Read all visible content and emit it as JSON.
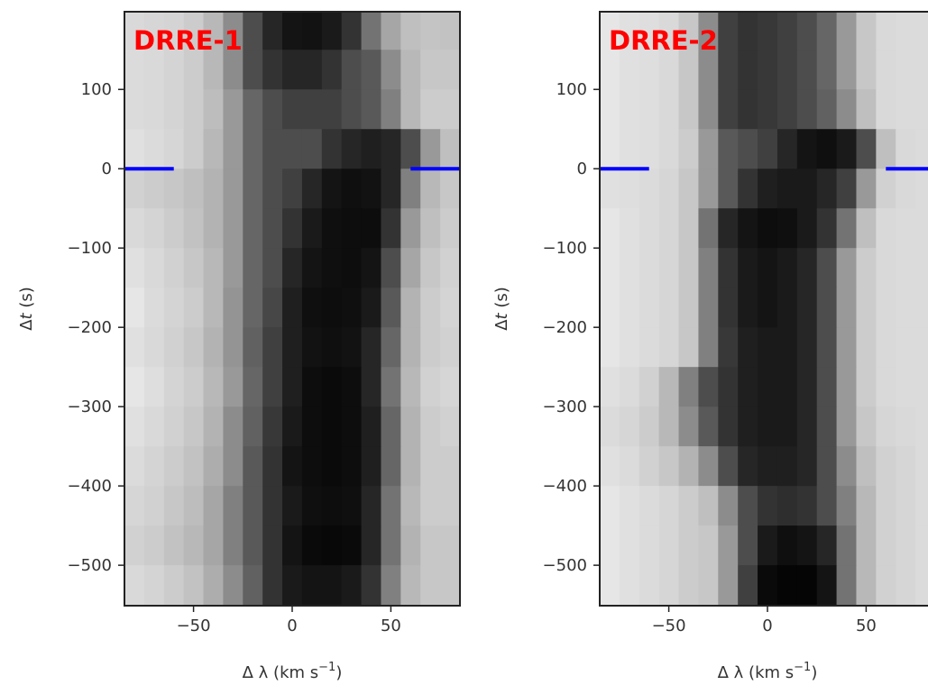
{
  "chart_data": [
    {
      "type": "heatmap",
      "label": "DRRE-1",
      "label_color": "#ff0000",
      "xlabel": [
        "Δ λ (km s",
        "−1",
        ")"
      ],
      "ylabel": [
        "Δ",
        "t",
        " (s)"
      ],
      "cmap": "gray",
      "xlim": [
        -85,
        85
      ],
      "ylim": [
        -551,
        198
      ],
      "xticks": [
        {
          "value": -50,
          "label": "−50"
        },
        0,
        50
      ],
      "yticks": [
        100,
        0,
        {
          "value": -100,
          "label": "−100"
        },
        {
          "value": -200,
          "label": "−200"
        },
        {
          "value": -300,
          "label": "−300"
        },
        {
          "value": -400,
          "label": "−400"
        },
        {
          "value": -500,
          "label": "−500"
        }
      ],
      "x_edges": [
        -85,
        -75,
        -65,
        -55,
        -45,
        -35,
        -25,
        -15,
        -5,
        5,
        15,
        25,
        35,
        45,
        55,
        65,
        75,
        85
      ],
      "y_edges": [
        200,
        150,
        100,
        50,
        0,
        -50,
        -100,
        -150,
        -200,
        -250,
        -300,
        -350,
        -400,
        -450,
        -500,
        -550
      ],
      "z": [
        [
          0.85,
          0.84,
          0.83,
          0.8,
          0.72,
          0.55,
          0.3,
          0.15,
          0.08,
          0.07,
          0.1,
          0.2,
          0.45,
          0.65,
          0.75,
          0.77,
          0.76
        ],
        [
          0.86,
          0.85,
          0.83,
          0.8,
          0.72,
          0.55,
          0.3,
          0.2,
          0.15,
          0.15,
          0.2,
          0.3,
          0.35,
          0.55,
          0.72,
          0.78,
          0.78
        ],
        [
          0.86,
          0.85,
          0.83,
          0.8,
          0.74,
          0.6,
          0.4,
          0.3,
          0.25,
          0.25,
          0.25,
          0.3,
          0.35,
          0.5,
          0.72,
          0.8,
          0.8
        ],
        [
          0.88,
          0.86,
          0.84,
          0.8,
          0.72,
          0.6,
          0.4,
          0.3,
          0.3,
          0.3,
          0.2,
          0.15,
          0.12,
          0.15,
          0.3,
          0.6,
          0.75
        ],
        [
          0.82,
          0.8,
          0.78,
          0.75,
          0.7,
          0.6,
          0.4,
          0.3,
          0.25,
          0.15,
          0.08,
          0.06,
          0.07,
          0.15,
          0.5,
          0.72,
          0.78
        ],
        [
          0.85,
          0.83,
          0.8,
          0.76,
          0.7,
          0.6,
          0.4,
          0.3,
          0.2,
          0.1,
          0.06,
          0.05,
          0.05,
          0.2,
          0.6,
          0.75,
          0.8
        ],
        [
          0.88,
          0.85,
          0.82,
          0.78,
          0.72,
          0.6,
          0.4,
          0.3,
          0.15,
          0.08,
          0.06,
          0.05,
          0.08,
          0.3,
          0.65,
          0.78,
          0.82
        ],
        [
          0.9,
          0.86,
          0.83,
          0.8,
          0.72,
          0.58,
          0.4,
          0.28,
          0.12,
          0.06,
          0.05,
          0.06,
          0.1,
          0.35,
          0.7,
          0.8,
          0.83
        ],
        [
          0.88,
          0.85,
          0.82,
          0.78,
          0.7,
          0.58,
          0.38,
          0.25,
          0.12,
          0.07,
          0.06,
          0.07,
          0.15,
          0.4,
          0.7,
          0.8,
          0.82
        ],
        [
          0.9,
          0.87,
          0.83,
          0.8,
          0.72,
          0.6,
          0.4,
          0.25,
          0.12,
          0.05,
          0.04,
          0.05,
          0.15,
          0.45,
          0.72,
          0.82,
          0.84
        ],
        [
          0.88,
          0.85,
          0.82,
          0.78,
          0.7,
          0.55,
          0.38,
          0.22,
          0.1,
          0.05,
          0.04,
          0.05,
          0.12,
          0.4,
          0.7,
          0.8,
          0.82
        ],
        [
          0.86,
          0.83,
          0.8,
          0.76,
          0.68,
          0.55,
          0.35,
          0.2,
          0.08,
          0.05,
          0.04,
          0.05,
          0.12,
          0.4,
          0.7,
          0.8,
          0.8
        ],
        [
          0.84,
          0.82,
          0.78,
          0.74,
          0.65,
          0.5,
          0.35,
          0.2,
          0.1,
          0.06,
          0.05,
          0.06,
          0.15,
          0.45,
          0.72,
          0.8,
          0.8
        ],
        [
          0.82,
          0.8,
          0.76,
          0.72,
          0.65,
          0.5,
          0.35,
          0.2,
          0.08,
          0.04,
          0.03,
          0.04,
          0.15,
          0.45,
          0.7,
          0.78,
          0.78
        ],
        [
          0.85,
          0.83,
          0.8,
          0.76,
          0.68,
          0.55,
          0.38,
          0.2,
          0.1,
          0.08,
          0.08,
          0.1,
          0.2,
          0.5,
          0.72,
          0.78,
          0.78
        ]
      ],
      "lines": [
        {
          "x": [
            -85,
            -60
          ],
          "y": 0,
          "color": "#0000ff"
        },
        {
          "x": [
            60,
            85
          ],
          "y": 0,
          "color": "#0000ff"
        }
      ]
    },
    {
      "type": "heatmap",
      "label": "DRRE-2",
      "label_color": "#ff0000",
      "xlabel": [
        "Δ λ (km s",
        "−1",
        ")"
      ],
      "ylabel": [
        "Δ",
        "t",
        " (s)"
      ],
      "cmap": "gray",
      "xlim": [
        -85,
        85
      ],
      "ylim": [
        -551,
        198
      ],
      "xticks": [
        {
          "value": -50,
          "label": "−50"
        },
        0,
        50
      ],
      "yticks": [
        100,
        0,
        {
          "value": -100,
          "label": "−100"
        },
        {
          "value": -200,
          "label": "−200"
        },
        {
          "value": -300,
          "label": "−300"
        },
        {
          "value": -400,
          "label": "−400"
        },
        {
          "value": -500,
          "label": "−500"
        }
      ],
      "x_edges": [
        -85,
        -75,
        -65,
        -55,
        -45,
        -35,
        -25,
        -15,
        -5,
        5,
        15,
        25,
        35,
        45,
        55,
        65,
        75,
        85
      ],
      "y_edges": [
        200,
        150,
        100,
        50,
        0,
        -50,
        -100,
        -150,
        -200,
        -250,
        -300,
        -350,
        -400,
        -450,
        -500,
        -550
      ],
      "z": [
        [
          0.9,
          0.88,
          0.87,
          0.85,
          0.78,
          0.55,
          0.25,
          0.2,
          0.22,
          0.25,
          0.3,
          0.4,
          0.6,
          0.78,
          0.85,
          0.86,
          0.86
        ],
        [
          0.9,
          0.88,
          0.87,
          0.85,
          0.78,
          0.55,
          0.25,
          0.2,
          0.22,
          0.25,
          0.3,
          0.4,
          0.6,
          0.78,
          0.85,
          0.86,
          0.86
        ],
        [
          0.9,
          0.88,
          0.87,
          0.85,
          0.78,
          0.55,
          0.25,
          0.2,
          0.22,
          0.25,
          0.3,
          0.38,
          0.55,
          0.75,
          0.85,
          0.86,
          0.86
        ],
        [
          0.9,
          0.88,
          0.87,
          0.85,
          0.8,
          0.6,
          0.35,
          0.3,
          0.25,
          0.15,
          0.08,
          0.06,
          0.1,
          0.3,
          0.75,
          0.85,
          0.86
        ],
        [
          0.88,
          0.87,
          0.86,
          0.84,
          0.78,
          0.6,
          0.35,
          0.2,
          0.12,
          0.1,
          0.1,
          0.15,
          0.25,
          0.6,
          0.82,
          0.85,
          0.86
        ],
        [
          0.9,
          0.88,
          0.86,
          0.84,
          0.78,
          0.45,
          0.15,
          0.08,
          0.05,
          0.06,
          0.1,
          0.2,
          0.45,
          0.75,
          0.85,
          0.86,
          0.86
        ],
        [
          0.9,
          0.88,
          0.86,
          0.84,
          0.78,
          0.5,
          0.2,
          0.1,
          0.08,
          0.1,
          0.15,
          0.3,
          0.6,
          0.8,
          0.85,
          0.86,
          0.86
        ],
        [
          0.9,
          0.88,
          0.86,
          0.84,
          0.78,
          0.5,
          0.2,
          0.1,
          0.08,
          0.1,
          0.15,
          0.3,
          0.6,
          0.8,
          0.85,
          0.86,
          0.86
        ],
        [
          0.9,
          0.88,
          0.86,
          0.84,
          0.78,
          0.5,
          0.22,
          0.12,
          0.1,
          0.1,
          0.15,
          0.3,
          0.6,
          0.8,
          0.85,
          0.86,
          0.86
        ],
        [
          0.88,
          0.86,
          0.82,
          0.72,
          0.5,
          0.3,
          0.2,
          0.12,
          0.1,
          0.1,
          0.15,
          0.3,
          0.6,
          0.8,
          0.85,
          0.86,
          0.86
        ],
        [
          0.86,
          0.84,
          0.8,
          0.72,
          0.55,
          0.35,
          0.2,
          0.12,
          0.1,
          0.1,
          0.15,
          0.3,
          0.6,
          0.78,
          0.84,
          0.85,
          0.86
        ],
        [
          0.88,
          0.86,
          0.82,
          0.78,
          0.7,
          0.55,
          0.3,
          0.15,
          0.12,
          0.12,
          0.15,
          0.3,
          0.55,
          0.75,
          0.82,
          0.84,
          0.86
        ],
        [
          0.9,
          0.88,
          0.86,
          0.84,
          0.8,
          0.75,
          0.55,
          0.3,
          0.2,
          0.18,
          0.2,
          0.3,
          0.5,
          0.72,
          0.82,
          0.84,
          0.86
        ],
        [
          0.9,
          0.88,
          0.86,
          0.84,
          0.8,
          0.78,
          0.6,
          0.3,
          0.1,
          0.06,
          0.08,
          0.15,
          0.45,
          0.72,
          0.82,
          0.84,
          0.86
        ],
        [
          0.9,
          0.88,
          0.86,
          0.84,
          0.8,
          0.78,
          0.6,
          0.25,
          0.04,
          0.02,
          0.02,
          0.08,
          0.45,
          0.72,
          0.82,
          0.84,
          0.86
        ]
      ],
      "lines": [
        {
          "x": [
            -85,
            -60
          ],
          "y": 0,
          "color": "#0000ff"
        },
        {
          "x": [
            60,
            85
          ],
          "y": 0,
          "color": "#0000ff"
        }
      ]
    }
  ]
}
